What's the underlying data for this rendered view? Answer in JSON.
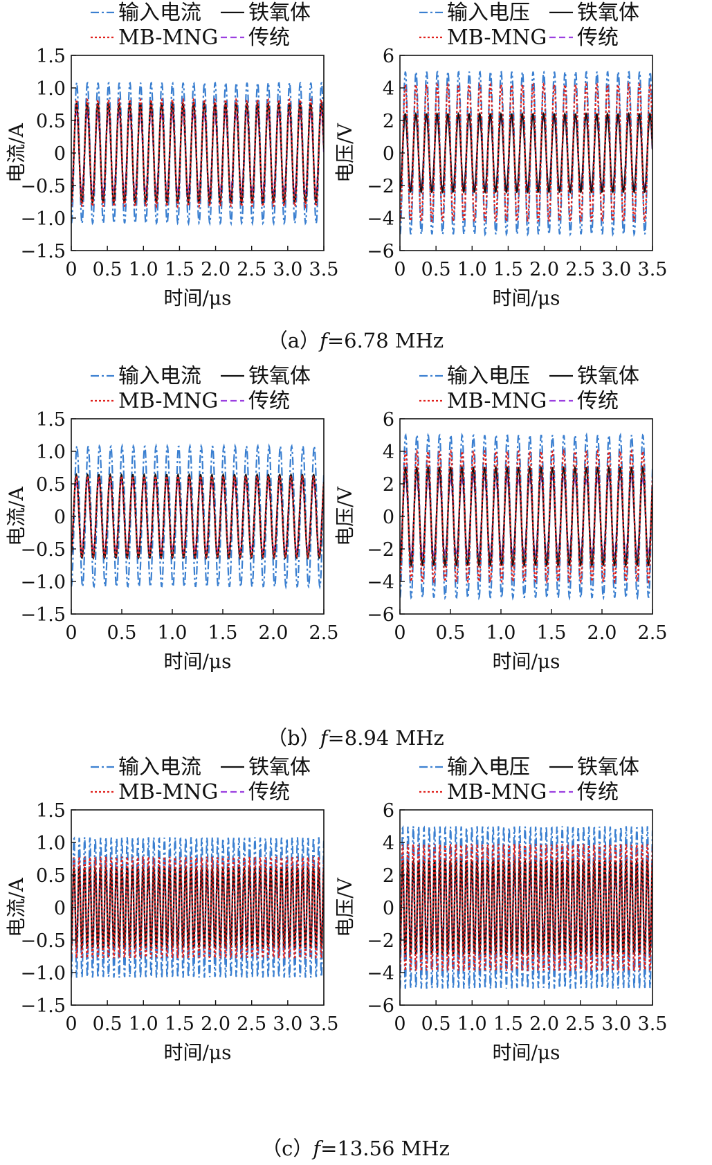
{
  "figure": {
    "captions": [
      {
        "prefix": "（a）",
        "var": "f",
        "text": "=6.78 MHz"
      },
      {
        "prefix": "（b）",
        "var": "f",
        "text": "=8.94 MHz"
      },
      {
        "prefix": "（c）",
        "var": "f",
        "text": "=13.56 MHz"
      }
    ]
  },
  "colors": {
    "input": "#3a7fd0",
    "ferrite": "#111111",
    "mbmng": "#e0201c",
    "traditional": "#9b3fe0"
  },
  "chart_data": [
    {
      "type": "line",
      "row": "a",
      "panel": "current",
      "xlabel": "时间/μs",
      "ylabel": "电流/A",
      "xlim": [
        0,
        3.5
      ],
      "ylim": [
        -1.5,
        1.5
      ],
      "xticks": [
        "0",
        "0.5",
        "1.0",
        "1.5",
        "2.0",
        "2.5",
        "3.0",
        "3.5"
      ],
      "yticks": [
        "1.5",
        "1.0",
        "0.5",
        "0",
        "−0.5",
        "−1.0",
        "−1.5"
      ],
      "legend": [
        "输入电流",
        "铁氧体",
        "MB-MNG",
        "传统"
      ],
      "legend_position": "top",
      "frequency_mhz": 6.78,
      "series": [
        {
          "name": "输入电流",
          "key": "input",
          "style": "dashdot",
          "amplitude": 1.08,
          "phase_deg": -4
        },
        {
          "name": "铁氧体",
          "key": "ferrite",
          "style": "solid",
          "amplitude": 0.76,
          "phase_deg": 2
        },
        {
          "name": "MB-MNG",
          "key": "mbmng",
          "style": "dotted",
          "amplitude": 0.82,
          "phase_deg": 0
        },
        {
          "name": "传统",
          "key": "traditional",
          "style": "dashed",
          "amplitude": 0.62,
          "phase_deg": 6
        }
      ]
    },
    {
      "type": "line",
      "row": "a",
      "panel": "voltage",
      "xlabel": "时间/μs",
      "ylabel": "电压/V",
      "xlim": [
        0,
        3.5
      ],
      "ylim": [
        -6,
        6
      ],
      "xticks": [
        "0",
        "0.5",
        "1.0",
        "1.5",
        "2.0",
        "2.5",
        "3.0",
        "3.5"
      ],
      "yticks": [
        "6",
        "4",
        "2",
        "0",
        "−2",
        "−4",
        "−6"
      ],
      "legend": [
        "输入电压",
        "铁氧体",
        "MB-MNG",
        "传统"
      ],
      "legend_position": "top",
      "frequency_mhz": 6.78,
      "series": [
        {
          "name": "输入电压",
          "key": "input",
          "style": "dashdot",
          "amplitude": 5.0,
          "phase_deg": -4
        },
        {
          "name": "铁氧体",
          "key": "ferrite",
          "style": "solid",
          "amplitude": 2.4,
          "phase_deg": 2
        },
        {
          "name": "MB-MNG",
          "key": "mbmng",
          "style": "dotted",
          "amplitude": 4.2,
          "phase_deg": 0
        },
        {
          "name": "传统",
          "key": "traditional",
          "style": "dashed",
          "amplitude": 2.2,
          "phase_deg": 6
        }
      ]
    },
    {
      "type": "line",
      "row": "b",
      "panel": "current",
      "xlabel": "时间/μs",
      "ylabel": "电流/A",
      "xlim": [
        0,
        2.5
      ],
      "ylim": [
        -1.5,
        1.5
      ],
      "xticks": [
        "0",
        "0.5",
        "1.0",
        "1.5",
        "2.0",
        "2.5"
      ],
      "yticks": [
        "1.5",
        "1.0",
        "0.5",
        "0",
        "−0.5",
        "−1.0",
        "−1.5"
      ],
      "legend": [
        "输入电流",
        "铁氧体",
        "MB-MNG",
        "传统"
      ],
      "legend_position": "top",
      "frequency_mhz": 8.94,
      "series": [
        {
          "name": "输入电流",
          "key": "input",
          "style": "dashdot",
          "amplitude": 1.08,
          "phase_deg": 0
        },
        {
          "name": "铁氧体",
          "key": "ferrite",
          "style": "solid",
          "amplitude": 0.64,
          "phase_deg": 20
        },
        {
          "name": "MB-MNG",
          "key": "mbmng",
          "style": "dotted",
          "amplitude": 0.62,
          "phase_deg": 20
        },
        {
          "name": "传统",
          "key": "traditional",
          "style": "dashed",
          "amplitude": 0.54,
          "phase_deg": 24
        }
      ]
    },
    {
      "type": "line",
      "row": "b",
      "panel": "voltage",
      "xlabel": "时间/μs",
      "ylabel": "电压/V",
      "xlim": [
        0,
        2.5
      ],
      "ylim": [
        -6,
        6
      ],
      "xticks": [
        "0",
        "0.5",
        "1.0",
        "1.5",
        "2.0",
        "2.5"
      ],
      "yticks": [
        "6",
        "4",
        "2",
        "0",
        "−2",
        "−4",
        "−6"
      ],
      "legend": [
        "输入电压",
        "铁氧体",
        "MB-MNG",
        "传统"
      ],
      "legend_position": "top",
      "frequency_mhz": 8.94,
      "series": [
        {
          "name": "输入电压",
          "key": "input",
          "style": "dashdot",
          "amplitude": 5.0,
          "phase_deg": 0
        },
        {
          "name": "铁氧体",
          "key": "ferrite",
          "style": "solid",
          "amplitude": 3.0,
          "phase_deg": 4
        },
        {
          "name": "MB-MNG",
          "key": "mbmng",
          "style": "dotted",
          "amplitude": 4.0,
          "phase_deg": 2
        },
        {
          "name": "传统",
          "key": "traditional",
          "style": "dashed",
          "amplitude": 2.4,
          "phase_deg": 6
        }
      ]
    },
    {
      "type": "line",
      "row": "c",
      "panel": "current",
      "xlabel": "时间/μs",
      "ylabel": "电流/A",
      "xlim": [
        0,
        3.5
      ],
      "ylim": [
        -1.5,
        1.5
      ],
      "xticks": [
        "0",
        "0.5",
        "1.0",
        "1.5",
        "2.0",
        "2.5",
        "3.0",
        "3.5"
      ],
      "yticks": [
        "1.5",
        "1.0",
        "0.5",
        "0",
        "−0.5",
        "−1.0",
        "−1.5"
      ],
      "legend": [
        "输入电流",
        "铁氧体",
        "MB-MNG",
        "传统"
      ],
      "legend_position": "top",
      "frequency_mhz": 13.56,
      "series": [
        {
          "name": "输入电流",
          "key": "input",
          "style": "dashdot",
          "amplitude": 1.08,
          "phase_deg": -4
        },
        {
          "name": "铁氧体",
          "key": "ferrite",
          "style": "solid",
          "amplitude": 0.62,
          "phase_deg": 2
        },
        {
          "name": "MB-MNG",
          "key": "mbmng",
          "style": "dotted",
          "amplitude": 0.78,
          "phase_deg": 0
        },
        {
          "name": "传统",
          "key": "traditional",
          "style": "dashed",
          "amplitude": 0.55,
          "phase_deg": 6
        }
      ]
    },
    {
      "type": "line",
      "row": "c",
      "panel": "voltage",
      "xlabel": "时间/μs",
      "ylabel": "电压/V",
      "xlim": [
        0,
        3.5
      ],
      "ylim": [
        -6,
        6
      ],
      "xticks": [
        "0",
        "0.5",
        "1.0",
        "1.5",
        "2.0",
        "2.5",
        "3.0",
        "3.5"
      ],
      "yticks": [
        "6",
        "4",
        "2",
        "0",
        "−2",
        "−4",
        "−6"
      ],
      "legend": [
        "输入电压",
        "铁氧体",
        "MB-MNG",
        "传统"
      ],
      "legend_position": "top",
      "frequency_mhz": 13.56,
      "series": [
        {
          "name": "输入电压",
          "key": "input",
          "style": "dashdot",
          "amplitude": 5.0,
          "phase_deg": -4
        },
        {
          "name": "铁氧体",
          "key": "ferrite",
          "style": "solid",
          "amplitude": 2.9,
          "phase_deg": 2
        },
        {
          "name": "MB-MNG",
          "key": "mbmng",
          "style": "dotted",
          "amplitude": 3.9,
          "phase_deg": 0
        },
        {
          "name": "传统",
          "key": "traditional",
          "style": "dashed",
          "amplitude": 2.3,
          "phase_deg": 6
        }
      ]
    }
  ]
}
